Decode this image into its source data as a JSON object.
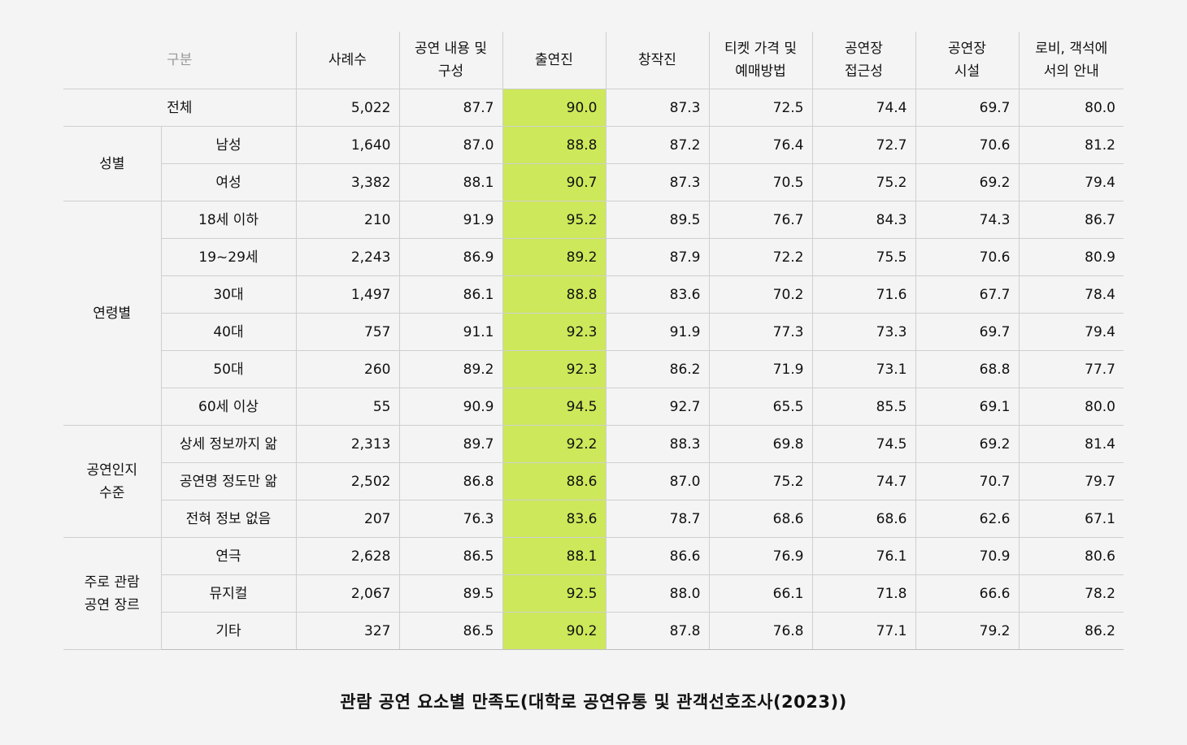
{
  "chart_data": {
    "type": "table",
    "title": "관람 공연 요소별 만족도(대학로 공연유통 및 관객선호조사(2023))",
    "corner_label": "구분",
    "columns": [
      "사례수",
      "공연 내용 및 구성",
      "출연진",
      "창작진",
      "티켓 가격 및 예매방법",
      "공연장 접근성",
      "공연장 시설",
      "로비, 객석에서의 안내"
    ],
    "columns_display": [
      [
        "사례수"
      ],
      [
        "공연 내용 및",
        "구성"
      ],
      [
        "출연진"
      ],
      [
        "창작진"
      ],
      [
        "티켓 가격 및",
        "예매방법"
      ],
      [
        "공연장",
        "접근성"
      ],
      [
        "공연장",
        "시설"
      ],
      [
        "로비, 객석에",
        "서의 안내"
      ]
    ],
    "highlight_column_index": 2,
    "highlight_color": "#cde85a",
    "total": {
      "label": "전체",
      "values": [
        "5,022",
        "87.7",
        "90.0",
        "87.3",
        "72.5",
        "74.4",
        "69.7",
        "80.0"
      ]
    },
    "groups": [
      {
        "label": "성별",
        "label_lines": [
          "성별"
        ],
        "rows": [
          {
            "label": "남성",
            "values": [
              "1,640",
              "87.0",
              "88.8",
              "87.2",
              "76.4",
              "72.7",
              "70.6",
              "81.2"
            ]
          },
          {
            "label": "여성",
            "values": [
              "3,382",
              "88.1",
              "90.7",
              "87.3",
              "70.5",
              "75.2",
              "69.2",
              "79.4"
            ]
          }
        ]
      },
      {
        "label": "연령별",
        "label_lines": [
          "연령별"
        ],
        "rows": [
          {
            "label": "18세 이하",
            "values": [
              "210",
              "91.9",
              "95.2",
              "89.5",
              "76.7",
              "84.3",
              "74.3",
              "86.7"
            ]
          },
          {
            "label": "19~29세",
            "values": [
              "2,243",
              "86.9",
              "89.2",
              "87.9",
              "72.2",
              "75.5",
              "70.6",
              "80.9"
            ]
          },
          {
            "label": "30대",
            "values": [
              "1,497",
              "86.1",
              "88.8",
              "83.6",
              "70.2",
              "71.6",
              "67.7",
              "78.4"
            ]
          },
          {
            "label": "40대",
            "values": [
              "757",
              "91.1",
              "92.3",
              "91.9",
              "77.3",
              "73.3",
              "69.7",
              "79.4"
            ]
          },
          {
            "label": "50대",
            "values": [
              "260",
              "89.2",
              "92.3",
              "86.2",
              "71.9",
              "73.1",
              "68.8",
              "77.7"
            ]
          },
          {
            "label": "60세 이상",
            "values": [
              "55",
              "90.9",
              "94.5",
              "92.7",
              "65.5",
              "85.5",
              "69.1",
              "80.0"
            ]
          }
        ]
      },
      {
        "label": "공연인지 수준",
        "label_lines": [
          "공연인지",
          "수준"
        ],
        "rows": [
          {
            "label": "상세 정보까지 앎",
            "values": [
              "2,313",
              "89.7",
              "92.2",
              "88.3",
              "69.8",
              "74.5",
              "69.2",
              "81.4"
            ]
          },
          {
            "label": "공연명 정도만 앎",
            "values": [
              "2,502",
              "86.8",
              "88.6",
              "87.0",
              "75.2",
              "74.7",
              "70.7",
              "79.7"
            ]
          },
          {
            "label": "전혀 정보 없음",
            "values": [
              "207",
              "76.3",
              "83.6",
              "78.7",
              "68.6",
              "68.6",
              "62.6",
              "67.1"
            ]
          }
        ]
      },
      {
        "label": "주로 관람 공연 장르",
        "label_lines": [
          "주로 관람",
          "공연 장르"
        ],
        "rows": [
          {
            "label": "연극",
            "values": [
              "2,628",
              "86.5",
              "88.1",
              "86.6",
              "76.9",
              "76.1",
              "70.9",
              "80.6"
            ]
          },
          {
            "label": "뮤지컬",
            "values": [
              "2,067",
              "89.5",
              "92.5",
              "88.0",
              "66.1",
              "71.8",
              "66.6",
              "78.2"
            ]
          },
          {
            "label": "기타",
            "values": [
              "327",
              "86.5",
              "90.2",
              "87.8",
              "76.8",
              "77.1",
              "79.2",
              "86.2"
            ]
          }
        ]
      }
    ]
  }
}
